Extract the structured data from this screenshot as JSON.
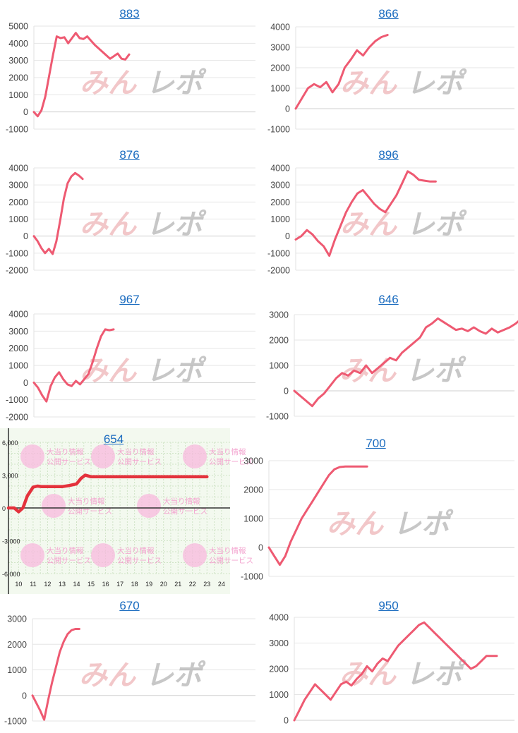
{
  "chart_data": [
    {
      "type": "line",
      "title": "883",
      "color": "#ee5a72",
      "yticks": [
        5000,
        4000,
        3000,
        2000,
        1000,
        0,
        -1000
      ],
      "ylim": [
        -1000,
        5000
      ],
      "x": [
        0,
        1,
        2,
        3,
        4,
        5,
        6,
        7,
        8,
        9,
        10,
        11,
        12,
        13,
        14,
        15,
        16,
        17,
        18,
        19,
        20,
        21,
        22,
        23,
        24,
        25
      ],
      "values": [
        0,
        -250,
        100,
        900,
        2100,
        3300,
        4400,
        4300,
        4350,
        4000,
        4300,
        4600,
        4300,
        4250,
        4400,
        4150,
        3900,
        3700,
        3500,
        3300,
        3100,
        3250,
        3400,
        3100,
        3050,
        3350
      ]
    },
    {
      "type": "line",
      "title": "866",
      "color": "#ee5a72",
      "yticks": [
        4000,
        3000,
        2000,
        1000,
        0,
        -1000
      ],
      "ylim": [
        -1000,
        4000
      ],
      "x": [
        0,
        1,
        2,
        3,
        4,
        5,
        6,
        7,
        8,
        9,
        10,
        11,
        12,
        13,
        14,
        15
      ],
      "values": [
        0,
        500,
        1000,
        1200,
        1050,
        1300,
        800,
        1200,
        2000,
        2400,
        2850,
        2600,
        3000,
        3300,
        3500,
        3600
      ]
    },
    {
      "type": "line",
      "title": "876",
      "color": "#ee5a72",
      "yticks": [
        4000,
        3000,
        2000,
        1000,
        0,
        -1000,
        -2000
      ],
      "ylim": [
        -2000,
        4000
      ],
      "x": [
        0,
        1,
        2,
        3,
        4,
        5,
        6,
        7,
        8,
        9,
        10,
        11,
        12,
        13
      ],
      "values": [
        0,
        -300,
        -700,
        -1000,
        -750,
        -1050,
        -300,
        900,
        2200,
        3100,
        3500,
        3700,
        3550,
        3350
      ]
    },
    {
      "type": "line",
      "title": "896",
      "color": "#ee5a72",
      "yticks": [
        4000,
        3000,
        2000,
        1000,
        0,
        -1000,
        -2000
      ],
      "ylim": [
        -2000,
        4000
      ],
      "x": [
        0,
        1,
        2,
        3,
        4,
        5,
        6,
        7,
        8,
        9,
        10,
        11,
        12,
        13,
        14,
        15,
        16,
        17,
        18,
        19,
        20,
        21,
        22,
        23,
        24,
        25
      ],
      "values": [
        -200,
        0,
        350,
        100,
        -300,
        -600,
        -1150,
        -200,
        600,
        1400,
        2000,
        2500,
        2700,
        2300,
        1900,
        1600,
        1400,
        1900,
        2400,
        3100,
        3800,
        3600,
        3300,
        3250,
        3200,
        3200
      ]
    },
    {
      "type": "line",
      "title": "967",
      "color": "#ee5a72",
      "yticks": [
        4000,
        3000,
        2000,
        1000,
        0,
        -1000,
        -2000
      ],
      "ylim": [
        -2000,
        4000
      ],
      "x": [
        0,
        1,
        2,
        3,
        4,
        5,
        6,
        7,
        8,
        9,
        10,
        11,
        12,
        13,
        14,
        15,
        16,
        17,
        18,
        19
      ],
      "values": [
        0,
        -300,
        -750,
        -1100,
        -200,
        300,
        600,
        200,
        -100,
        -200,
        100,
        -100,
        200,
        500,
        1200,
        2000,
        2700,
        3100,
        3050,
        3100
      ]
    },
    {
      "type": "line",
      "title": "646",
      "color": "#ee5a72",
      "yticks": [
        3000,
        2000,
        1000,
        0,
        -1000
      ],
      "ylim": [
        -1000,
        3000
      ],
      "x": [
        0,
        1,
        2,
        3,
        4,
        5,
        6,
        7,
        8,
        9,
        10,
        11,
        12,
        13,
        14,
        15,
        16,
        17,
        18,
        19,
        20,
        21,
        22,
        23,
        24,
        25,
        26,
        27,
        28,
        29,
        30,
        31,
        32,
        33,
        34,
        35,
        36,
        37,
        38,
        39
      ],
      "values": [
        0,
        -200,
        -400,
        -600,
        -300,
        -100,
        200,
        500,
        700,
        600,
        800,
        700,
        1000,
        700,
        900,
        1100,
        1300,
        1200,
        1500,
        1700,
        1900,
        2100,
        2500,
        2650,
        2850,
        2700,
        2550,
        2400,
        2450,
        2350,
        2500,
        2350,
        2250,
        2450,
        2300,
        2400,
        2500,
        2650,
        2850,
        2950
      ]
    },
    {
      "type": "line",
      "title": "654",
      "style": "green-grid",
      "color": "#e4313c",
      "yticks": [
        6000,
        3000,
        0,
        -3000,
        -6000
      ],
      "ytick_labels": [
        "6,000",
        "3,000",
        "0",
        "-3,000",
        "-6,000"
      ],
      "ylim": [
        -6000,
        6000
      ],
      "xticks": [
        10,
        11,
        12,
        13,
        14,
        15,
        16,
        17,
        18,
        19,
        20,
        21,
        22,
        23,
        24
      ],
      "xlim": [
        9.3,
        24.3
      ],
      "x": [
        9.3,
        9.7,
        10.0,
        10.3,
        10.6,
        11.0,
        11.3,
        11.6,
        12.0,
        13.0,
        13.5,
        14.0,
        14.3,
        14.6,
        15.0,
        16.0,
        17.0,
        18.0,
        19.0,
        20.0,
        21.0,
        22.0,
        23.0
      ],
      "values": [
        0,
        0,
        -350,
        0,
        1100,
        1900,
        2000,
        1950,
        1950,
        1950,
        2050,
        2200,
        2700,
        3000,
        2850,
        2850,
        2850,
        2850,
        2850,
        2850,
        2850,
        2850,
        2850
      ]
    },
    {
      "type": "line",
      "title": "700",
      "color": "#ee5a72",
      "yticks": [
        3000,
        2000,
        1000,
        0,
        -1000
      ],
      "ylim": [
        -1000,
        3000
      ],
      "x": [
        0,
        1,
        2,
        3,
        4,
        5,
        6,
        7,
        8,
        9,
        10,
        11,
        12,
        13,
        14,
        15,
        16,
        17,
        18
      ],
      "values": [
        0,
        -300,
        -600,
        -300,
        200,
        600,
        1000,
        1300,
        1600,
        1900,
        2200,
        2500,
        2700,
        2780,
        2800,
        2800,
        2800,
        2800,
        2800
      ]
    },
    {
      "type": "line",
      "title": "670",
      "color": "#ee5a72",
      "yticks": [
        3000,
        2000,
        1000,
        0,
        -1000
      ],
      "ylim": [
        -1000,
        3000
      ],
      "x": [
        0,
        1,
        2,
        3,
        4,
        5,
        6,
        7,
        8,
        9,
        10,
        11,
        12
      ],
      "values": [
        0,
        -300,
        -600,
        -950,
        -200,
        500,
        1100,
        1700,
        2100,
        2400,
        2550,
        2600,
        2600
      ]
    },
    {
      "type": "line",
      "title": "950",
      "color": "#ee5a72",
      "yticks": [
        4000,
        3000,
        2000,
        1000,
        0
      ],
      "ylim": [
        0,
        4000
      ],
      "x": [
        0,
        1,
        2,
        3,
        4,
        5,
        6,
        7,
        8,
        9,
        10,
        11,
        12,
        13,
        14,
        15,
        16,
        17,
        18,
        19,
        20,
        21,
        22,
        23,
        24,
        25,
        26,
        27,
        28,
        29,
        30,
        31,
        32,
        33,
        34,
        35,
        36,
        37,
        38,
        39
      ],
      "values": [
        0,
        400,
        800,
        1100,
        1400,
        1200,
        1000,
        800,
        1100,
        1400,
        1500,
        1350,
        1600,
        1800,
        2100,
        1900,
        2200,
        2400,
        2300,
        2600,
        2900,
        3100,
        3300,
        3500,
        3700,
        3800,
        3600,
        3400,
        3200,
        3000,
        2800,
        2600,
        2400,
        2200,
        2000,
        2100,
        2300,
        2500,
        2500,
        2500
      ]
    }
  ],
  "watermarks": {
    "brand_left": "みん",
    "brand_right": "レポ",
    "service_line1": "大当り情報",
    "service_line2": "公開サービス"
  }
}
